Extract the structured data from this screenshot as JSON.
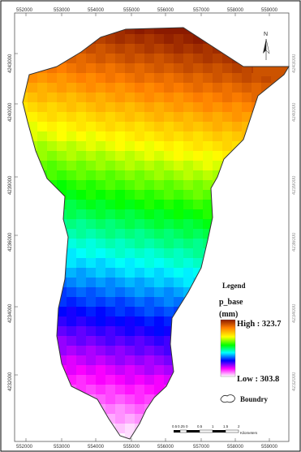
{
  "map": {
    "x_ticks": [
      "552000",
      "553000",
      "554000",
      "555000",
      "556000",
      "557000",
      "558000",
      "559000"
    ],
    "y_ticks": [
      "4243000",
      "4240000",
      "4239000",
      "4236000",
      "4234000",
      "4232000"
    ],
    "north_arrow": "N",
    "north_arrow_icon": "north-arrow-icon"
  },
  "legend": {
    "title": "Legend",
    "layer": "p_base",
    "unit": "(mm)",
    "high_label": "High : 323.7",
    "low_label": "Low : 303.8",
    "boundary_label": "Boundry",
    "boundary_icon": "boundary-outline-icon"
  },
  "scale_bar": {
    "labels": [
      "0.5",
      "0.25",
      "0",
      "0.5",
      "1",
      "1.5",
      "2"
    ],
    "unit": "Kilometers"
  },
  "colors": {
    "high": "#8b1a00",
    "low": "#ffffff",
    "ramp": [
      "#8b1a00",
      "#ff7f00",
      "#ffff00",
      "#00ff00",
      "#00ffff",
      "#0000ff",
      "#ff00ff",
      "#ffffff"
    ],
    "boundary": "#333333"
  }
}
